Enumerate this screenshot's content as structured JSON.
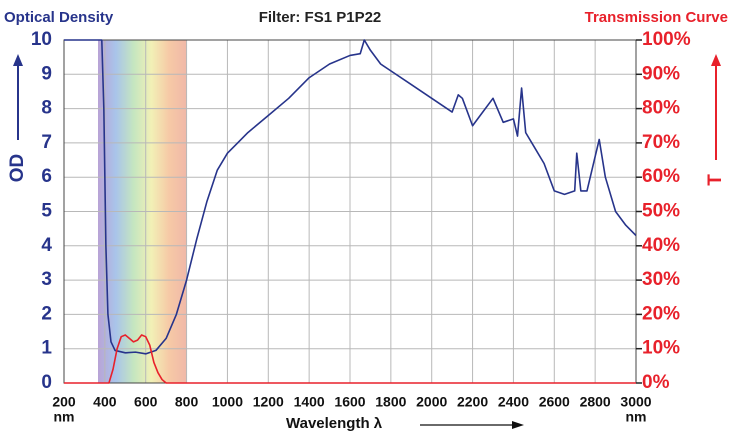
{
  "chart_data": {
    "type": "line",
    "title": "Filter: FS1 P1P22",
    "y_title": "Optical Density",
    "y2_title": "Transmission Curve",
    "ylabel": "OD",
    "y2label": "T",
    "xlabel": "Wavelength λ",
    "x_unit": "nm",
    "xlim": [
      200,
      3000
    ],
    "xticks": [
      200,
      400,
      600,
      800,
      1000,
      1200,
      1400,
      1600,
      1800,
      2000,
      2200,
      2400,
      2600,
      2800,
      3000
    ],
    "ylim": [
      0,
      10
    ],
    "yticks": [
      0,
      1,
      2,
      3,
      4,
      5,
      6,
      7,
      8,
      9,
      10
    ],
    "y2lim": [
      0,
      100
    ],
    "y2ticks": [
      {
        "value": 0,
        "label": "0%"
      },
      {
        "value": 10,
        "label": "10%"
      },
      {
        "value": 20,
        "label": "20%"
      },
      {
        "value": 30,
        "label": "30%"
      },
      {
        "value": 40,
        "label": "40%"
      },
      {
        "value": 50,
        "label": "50%"
      },
      {
        "value": 60,
        "label": "60%"
      },
      {
        "value": 70,
        "label": "70%"
      },
      {
        "value": 80,
        "label": "80%"
      },
      {
        "value": 90,
        "label": "90%"
      },
      {
        "value": 100,
        "label": "100%"
      }
    ],
    "grid": true,
    "series": [
      {
        "name": "Optical Density",
        "color": "#27348b",
        "x": [
          200,
          385,
          395,
          405,
          415,
          430,
          450,
          500,
          550,
          600,
          650,
          700,
          750,
          800,
          850,
          900,
          950,
          1000,
          1050,
          1100,
          1200,
          1300,
          1400,
          1500,
          1600,
          1650,
          1670,
          1700,
          1750,
          1800,
          1900,
          2000,
          2100,
          2130,
          2150,
          2200,
          2250,
          2300,
          2350,
          2400,
          2420,
          2440,
          2460,
          2500,
          2550,
          2600,
          2650,
          2700,
          2710,
          2730,
          2760,
          2800,
          2820,
          2850,
          2900,
          2950,
          3000
        ],
        "values": [
          10,
          10,
          8,
          4,
          2,
          1.2,
          0.95,
          0.88,
          0.9,
          0.85,
          0.95,
          1.3,
          2.0,
          3.0,
          4.2,
          5.3,
          6.2,
          6.7,
          7.0,
          7.3,
          7.8,
          8.3,
          8.9,
          9.3,
          9.55,
          9.6,
          10,
          9.7,
          9.3,
          9.1,
          8.7,
          8.3,
          7.9,
          8.4,
          8.3,
          7.5,
          7.9,
          8.3,
          7.6,
          7.7,
          7.2,
          8.6,
          7.3,
          6.9,
          6.4,
          5.6,
          5.5,
          5.6,
          6.7,
          5.6,
          5.6,
          6.6,
          7.1,
          6.0,
          5.0,
          4.6,
          4.3
        ]
      },
      {
        "name": "Transmission Curve",
        "color": "#e8212b",
        "axis": "y2",
        "x": [
          200,
          420,
          440,
          460,
          480,
          500,
          520,
          540,
          560,
          580,
          600,
          620,
          640,
          660,
          680,
          700,
          3000
        ],
        "values": [
          0,
          0,
          4,
          10,
          13.5,
          14,
          13,
          12,
          12.5,
          14,
          13.5,
          11,
          6,
          3,
          1,
          0,
          0
        ]
      }
    ]
  }
}
